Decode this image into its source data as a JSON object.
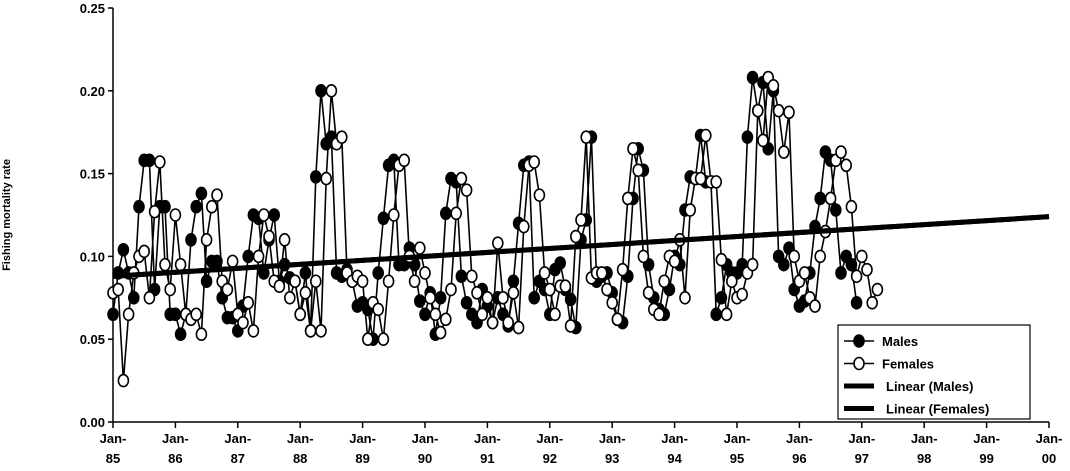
{
  "chart_data": {
    "type": "line",
    "y_label": "Fishing mortality rate",
    "ylim": [
      0,
      0.25
    ],
    "yticks": [
      {
        "value": 0,
        "label": "0.00"
      },
      {
        "value": 0.05,
        "label": "0.05"
      },
      {
        "value": 0.1,
        "label": "0.10"
      },
      {
        "value": 0.15,
        "label": "0.15"
      },
      {
        "value": 0.2,
        "label": "0.20"
      },
      {
        "value": 0.25,
        "label": "0.25"
      }
    ],
    "xlim": [
      "Jan-85",
      "Jan-00"
    ],
    "xticks": [
      "Jan-85",
      "Jan-86",
      "Jan-87",
      "Jan-88",
      "Jan-89",
      "Jan-90",
      "Jan-91",
      "Jan-92",
      "Jan-93",
      "Jan-94",
      "Jan-95",
      "Jan-96",
      "Jan-97",
      "Jan-98",
      "Jan-99",
      "Jan-00"
    ],
    "legend": "lower right",
    "series": [
      {
        "name": "Males",
        "color": "#000000",
        "marker": "filled",
        "start": "Jan-85",
        "values": [
          0.065,
          0.09,
          0.104,
          0.09,
          0.075,
          0.13,
          0.158,
          0.158,
          0.08,
          0.13,
          0.13,
          0.065,
          0.065,
          0.053,
          0.065,
          0.11,
          0.13,
          0.138,
          0.085,
          0.097,
          0.097,
          0.075,
          0.063,
          0.063,
          0.055,
          0.07,
          0.1,
          0.125,
          0.123,
          0.09,
          0.11,
          0.125,
          0.085,
          0.095,
          0.087,
          0.085,
          0.065,
          0.09,
          0.055,
          0.148,
          0.2,
          0.168,
          0.172,
          0.09,
          0.088,
          0.092,
          0.085,
          0.07,
          0.072,
          0.068,
          0.05,
          0.09,
          0.123,
          0.155,
          0.158,
          0.095,
          0.095,
          0.105,
          0.095,
          0.073,
          0.065,
          0.078,
          0.053,
          0.075,
          0.126,
          0.147,
          0.145,
          0.088,
          0.072,
          0.065,
          0.06,
          0.08,
          0.07,
          0.06,
          0.075,
          0.065,
          0.058,
          0.085,
          0.12,
          0.155,
          0.157,
          0.075,
          0.085,
          0.08,
          0.065,
          0.092,
          0.096,
          0.08,
          0.074,
          0.057,
          0.11,
          0.122,
          0.172,
          0.085,
          0.088,
          0.09,
          0.078,
          0.062,
          0.06,
          0.088,
          0.135,
          0.165,
          0.152,
          0.095,
          0.075,
          0.068,
          0.065,
          0.08,
          0.1,
          0.095,
          0.128,
          0.148,
          0.147,
          0.173,
          0.145,
          0.145,
          0.065,
          0.075,
          0.095,
          0.09,
          0.09,
          0.095,
          0.172,
          0.208,
          0.188,
          0.205,
          0.165,
          0.2,
          0.1,
          0.095,
          0.105,
          0.08,
          0.07,
          0.073,
          0.09,
          0.118,
          0.135,
          0.163,
          0.158,
          0.128,
          0.09,
          0.1,
          0.095,
          0.072
        ]
      },
      {
        "name": "Females",
        "color": "#000000",
        "marker": "open",
        "start": "Jan-85",
        "values": [
          0.078,
          0.08,
          0.025,
          0.065,
          0.09,
          0.1,
          0.103,
          0.075,
          0.127,
          0.157,
          0.095,
          0.08,
          0.125,
          0.095,
          0.065,
          0.062,
          0.065,
          0.053,
          0.11,
          0.13,
          0.137,
          0.085,
          0.08,
          0.097,
          0.065,
          0.06,
          0.072,
          0.055,
          0.1,
          0.125,
          0.112,
          0.085,
          0.082,
          0.11,
          0.075,
          0.085,
          0.065,
          0.078,
          0.055,
          0.085,
          0.055,
          0.147,
          0.2,
          0.168,
          0.172,
          0.09,
          0.085,
          0.088,
          0.085,
          0.05,
          0.072,
          0.068,
          0.05,
          0.085,
          0.125,
          0.155,
          0.158,
          0.1,
          0.085,
          0.105,
          0.09,
          0.075,
          0.065,
          0.054,
          0.062,
          0.08,
          0.126,
          0.147,
          0.14,
          0.088,
          0.078,
          0.065,
          0.075,
          0.06,
          0.108,
          0.075,
          0.06,
          0.078,
          0.057,
          0.118,
          0.155,
          0.157,
          0.137,
          0.09,
          0.08,
          0.065,
          0.082,
          0.082,
          0.058,
          0.112,
          0.122,
          0.172,
          0.087,
          0.09,
          0.09,
          0.08,
          0.072,
          0.062,
          0.092,
          0.135,
          0.165,
          0.152,
          0.1,
          0.078,
          0.068,
          0.065,
          0.085,
          0.1,
          0.097,
          0.11,
          0.075,
          0.128,
          0.147,
          0.147,
          0.173,
          0.145,
          0.145,
          0.098,
          0.065,
          0.085,
          0.075,
          0.077,
          0.09,
          0.095,
          0.188,
          0.17,
          0.208,
          0.203,
          0.188,
          0.163,
          0.187,
          0.1,
          0.085,
          0.09,
          0.075,
          0.07,
          0.1,
          0.115,
          0.135,
          0.158,
          0.163,
          0.155,
          0.13,
          0.088,
          0.1,
          0.092,
          0.072,
          0.08
        ]
      },
      {
        "name": "Linear (Males)",
        "color": "#000000",
        "marker": "none",
        "x": [
          "Jan-85",
          "Jan-00"
        ],
        "values": [
          0.088,
          0.124
        ]
      },
      {
        "name": "Linear (Females)",
        "color": "#000000",
        "marker": "none",
        "x": [
          "Jan-85",
          "Jan-00"
        ],
        "values": [
          0.088,
          0.124
        ]
      }
    ]
  }
}
